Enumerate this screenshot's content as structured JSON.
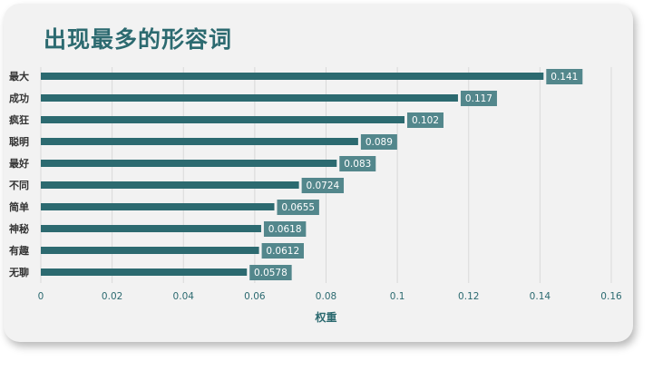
{
  "title": "出现最多的形容词",
  "chart_data": {
    "type": "bar",
    "orientation": "horizontal",
    "categories": [
      "最大",
      "成功",
      "疯狂",
      "聪明",
      "最好",
      "不同",
      "简单",
      "神秘",
      "有趣",
      "无聊"
    ],
    "values": [
      0.141,
      0.117,
      0.102,
      0.089,
      0.083,
      0.0724,
      0.0655,
      0.0618,
      0.0612,
      0.0578
    ],
    "value_labels": [
      "0.141",
      "0.117",
      "0.102",
      "0.089",
      "0.083",
      "0.0724",
      "0.0655",
      "0.0618",
      "0.0612",
      "0.0578"
    ],
    "xlabel": "权重",
    "xlim": [
      0,
      0.16
    ],
    "xticks": [
      "0",
      "0.02",
      "0.04",
      "0.06",
      "0.08",
      "0.1",
      "0.12",
      "0.14",
      "0.16"
    ],
    "grid": true,
    "colors": {
      "bar": "#2c6a70",
      "label_box": "#53878c"
    }
  }
}
